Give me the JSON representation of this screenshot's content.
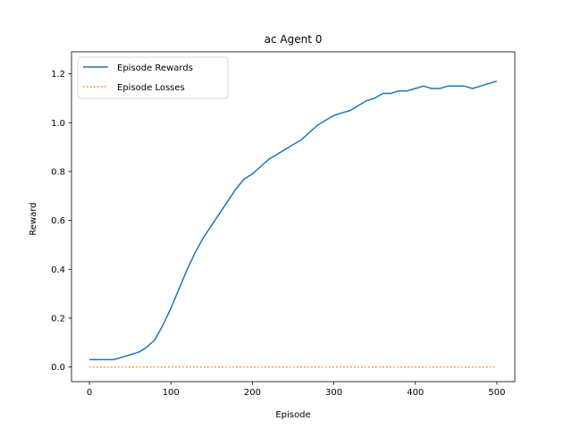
{
  "chart_data": {
    "type": "line",
    "title": "ac Agent 0",
    "xlabel": "Episode",
    "ylabel": "Reward",
    "xlim": [
      -22,
      522
    ],
    "ylim": [
      -0.06,
      1.29
    ],
    "xticks": [
      0,
      100,
      200,
      300,
      400,
      500
    ],
    "yticks": [
      0.0,
      0.2,
      0.4,
      0.6,
      0.8,
      1.0,
      1.2
    ],
    "ytick_labels": [
      "0.0",
      "0.2",
      "0.4",
      "0.6",
      "0.8",
      "1.0",
      "1.2"
    ],
    "grid": false,
    "legend_position": "upper-left",
    "series": [
      {
        "name": "Episode Rewards",
        "style": "solid",
        "color": "#1f77b4",
        "x": [
          0,
          10,
          20,
          30,
          40,
          50,
          60,
          70,
          80,
          90,
          100,
          110,
          120,
          130,
          140,
          150,
          160,
          170,
          180,
          190,
          200,
          210,
          220,
          230,
          240,
          250,
          260,
          270,
          280,
          290,
          300,
          310,
          320,
          330,
          340,
          350,
          360,
          370,
          380,
          390,
          400,
          410,
          420,
          430,
          440,
          450,
          460,
          470,
          480,
          490,
          500
        ],
        "y": [
          0.03,
          0.03,
          0.03,
          0.03,
          0.04,
          0.05,
          0.06,
          0.08,
          0.11,
          0.17,
          0.24,
          0.32,
          0.4,
          0.47,
          0.53,
          0.58,
          0.63,
          0.68,
          0.73,
          0.77,
          0.79,
          0.82,
          0.85,
          0.87,
          0.89,
          0.91,
          0.93,
          0.96,
          0.99,
          1.01,
          1.03,
          1.04,
          1.05,
          1.07,
          1.09,
          1.1,
          1.12,
          1.12,
          1.13,
          1.13,
          1.14,
          1.15,
          1.14,
          1.14,
          1.15,
          1.15,
          1.15,
          1.14,
          1.15,
          1.16,
          1.17
        ]
      },
      {
        "name": "Episode Losses",
        "style": "dotted",
        "color": "#ff7f0e",
        "x": [
          0,
          500
        ],
        "y": [
          0.0,
          0.0
        ]
      }
    ]
  }
}
